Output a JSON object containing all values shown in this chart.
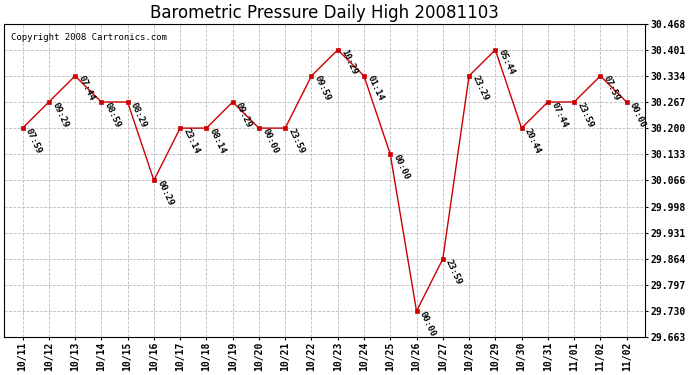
{
  "title": "Barometric Pressure Daily High 20081103",
  "copyright": "Copyright 2008 Cartronics.com",
  "x_labels": [
    "10/11",
    "10/12",
    "10/13",
    "10/14",
    "10/15",
    "10/16",
    "10/17",
    "10/18",
    "10/19",
    "10/20",
    "10/21",
    "10/22",
    "10/23",
    "10/24",
    "10/25",
    "10/26",
    "10/27",
    "10/28",
    "10/29",
    "10/30",
    "10/31",
    "11/01",
    "11/02",
    "11/02"
  ],
  "x_positions": [
    0,
    1,
    2,
    3,
    4,
    5,
    6,
    7,
    8,
    9,
    10,
    11,
    12,
    13,
    14,
    15,
    16,
    17,
    18,
    19,
    20,
    21,
    22,
    23
  ],
  "y_values": [
    30.2,
    30.267,
    30.334,
    30.267,
    30.267,
    30.066,
    30.2,
    30.2,
    30.267,
    30.2,
    30.2,
    30.334,
    30.401,
    30.334,
    30.133,
    29.73,
    29.864,
    30.334,
    30.401,
    30.2,
    30.267,
    30.267,
    30.334,
    30.267
  ],
  "point_labels": [
    "07:59",
    "09:29",
    "07:44",
    "08:59",
    "08:29",
    "00:29",
    "23:14",
    "08:14",
    "09:29",
    "00:00",
    "23:59",
    "09:59",
    "10:29",
    "01:14",
    "00:00",
    "00:00",
    "23:59",
    "23:29",
    "05:44",
    "20:44",
    "07:44",
    "23:59",
    "07:59",
    "00:00"
  ],
  "ylim_min": 29.663,
  "ylim_max": 30.468,
  "ytick_values": [
    30.468,
    30.401,
    30.334,
    30.267,
    30.2,
    30.133,
    30.066,
    29.998,
    29.931,
    29.864,
    29.797,
    29.73,
    29.663
  ],
  "line_color": "#cc0000",
  "marker_color": "#cc0000",
  "bg_color": "#ffffff",
  "grid_color": "#bbbbbb",
  "title_fontsize": 12,
  "tick_fontsize": 7,
  "annotation_fontsize": 6.5
}
